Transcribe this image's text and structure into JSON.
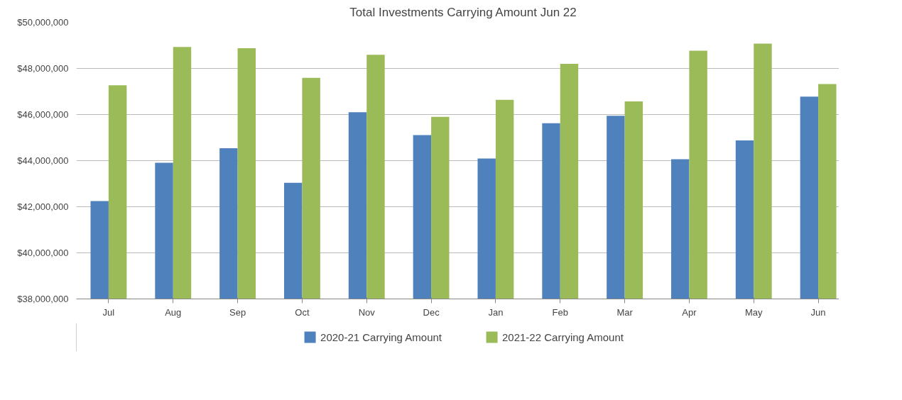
{
  "chart_data": {
    "type": "bar",
    "title": "Total Investments Carrying Amount Jun 22",
    "categories": [
      "Jul",
      "Aug",
      "Sep",
      "Oct",
      "Nov",
      "Dec",
      "Jan",
      "Feb",
      "Mar",
      "Apr",
      "May",
      "Jun"
    ],
    "series": [
      {
        "name": "2020-21 Carrying Amount",
        "color": "#4f81bd",
        "values": [
          42250000,
          43910000,
          44540000,
          43040000,
          46100000,
          45110000,
          44090000,
          45620000,
          45950000,
          44060000,
          44880000,
          46780000
        ]
      },
      {
        "name": "2021-22 Carrying Amount",
        "color": "#9bbb59",
        "values": [
          47270000,
          48930000,
          48880000,
          47590000,
          48590000,
          45900000,
          46640000,
          48200000,
          46570000,
          48770000,
          49080000,
          47320000
        ]
      }
    ],
    "ylim": [
      38000000,
      50000000
    ],
    "yticks": [
      {
        "value": 38000000,
        "label": "$38,000,000"
      },
      {
        "value": 40000000,
        "label": "$40,000,000"
      },
      {
        "value": 42000000,
        "label": "$42,000,000"
      },
      {
        "value": 44000000,
        "label": "$44,000,000"
      },
      {
        "value": 46000000,
        "label": "$46,000,000"
      },
      {
        "value": 48000000,
        "label": "$48,000,000"
      },
      {
        "value": 50000000,
        "label": "$50,000,000"
      }
    ],
    "grid": "y",
    "legend": "bottom"
  }
}
